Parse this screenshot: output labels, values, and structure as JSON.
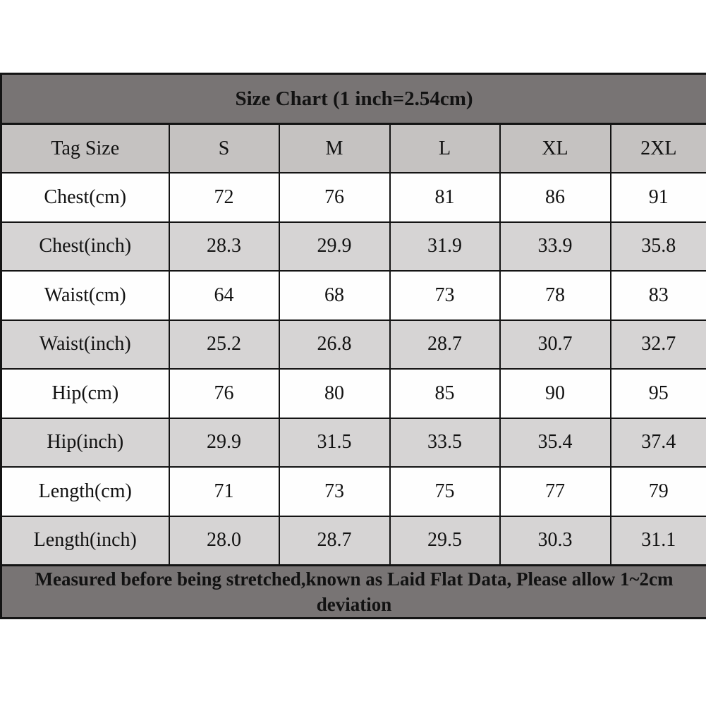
{
  "chart_data": {
    "type": "table",
    "title": "Size Chart (1 inch=2.54cm)",
    "columns": [
      "Tag Size",
      "S",
      "M",
      "L",
      "XL",
      "2XL"
    ],
    "rows": [
      {
        "label": "Chest(cm)",
        "values": [
          "72",
          "76",
          "81",
          "86",
          "91"
        ],
        "shaded": false
      },
      {
        "label": "Chest(inch)",
        "values": [
          "28.3",
          "29.9",
          "31.9",
          "33.9",
          "35.8"
        ],
        "shaded": true
      },
      {
        "label": "Waist(cm)",
        "values": [
          "64",
          "68",
          "73",
          "78",
          "83"
        ],
        "shaded": false
      },
      {
        "label": "Waist(inch)",
        "values": [
          "25.2",
          "26.8",
          "28.7",
          "30.7",
          "32.7"
        ],
        "shaded": true
      },
      {
        "label": "Hip(cm)",
        "values": [
          "76",
          "80",
          "85",
          "90",
          "95"
        ],
        "shaded": false
      },
      {
        "label": "Hip(inch)",
        "values": [
          "29.9",
          "31.5",
          "33.5",
          "35.4",
          "37.4"
        ],
        "shaded": true
      },
      {
        "label": "Length(cm)",
        "values": [
          "71",
          "73",
          "75",
          "77",
          "79"
        ],
        "shaded": false
      },
      {
        "label": "Length(inch)",
        "values": [
          "28.0",
          "28.7",
          "29.5",
          "30.3",
          "31.1"
        ],
        "shaded": true
      }
    ],
    "footer_note": "Measured before being stretched,known as Laid Flat Data, Please allow 1~2cm deviation",
    "layout_hints": {
      "grid": true,
      "header_position": "top",
      "units": [
        "cm",
        "inch"
      ]
    }
  },
  "colors": {
    "title_bg": "#787474",
    "header_bg": "#c5c2c1",
    "shaded_row_bg": "#d6d4d4",
    "white_row_bg": "#fefefe",
    "border": "#141414",
    "text": "#121212"
  }
}
